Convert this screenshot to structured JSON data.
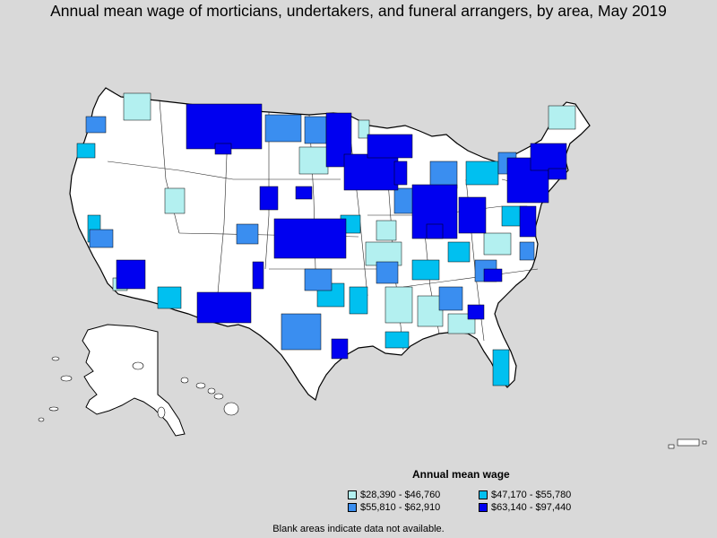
{
  "title": "Annual mean wage of morticians, undertakers, and funeral arrangers, by area, May 2019",
  "legend": {
    "title": "Annual mean wage",
    "items": [
      {
        "label": "$28,390 - $46,760",
        "color": "#b3f0f0"
      },
      {
        "label": "$47,170 - $55,780",
        "color": "#00c0f0"
      },
      {
        "label": "$55,810 - $62,910",
        "color": "#3a8ef0"
      },
      {
        "label": "$63,140 - $97,440",
        "color": "#0000f0"
      }
    ]
  },
  "footnote": "Blank areas indicate data not available.",
  "colors": {
    "background": "#d9d9d9",
    "land": "#ffffff",
    "border": "#000000"
  }
}
